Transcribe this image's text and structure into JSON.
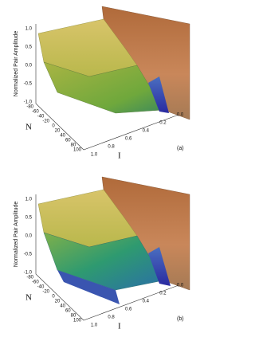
{
  "panels": [
    {
      "z_label": "Normalized Pair Amplitude",
      "z_ticks": [
        "1.0",
        "0.5",
        "0.0",
        "-0.5",
        "-1.0"
      ],
      "n_label": "N",
      "n_ticks": [
        "-80",
        "-60",
        "-40",
        "-20",
        "0",
        "20",
        "40",
        "60",
        "80",
        "100"
      ],
      "i_label": "I",
      "i_ticks": [
        "1.0",
        "0.8",
        "0.6",
        "0.4",
        "0.2",
        "0.0"
      ],
      "panel_label": "(a)"
    },
    {
      "z_label": "Normalized Pair Amplitude",
      "z_ticks": [
        "1.0",
        "0.5",
        "0.0",
        "-0.5",
        "-1.0"
      ],
      "n_label": "N",
      "n_ticks": [
        "-80",
        "-60",
        "-40",
        "-20",
        "0",
        "20",
        "40",
        "60",
        "80",
        "100"
      ],
      "i_label": "I",
      "i_ticks": [
        "1.0",
        "0.8",
        "0.6",
        "0.4",
        "0.2",
        "0.0"
      ],
      "panel_label": "(b)"
    }
  ]
}
